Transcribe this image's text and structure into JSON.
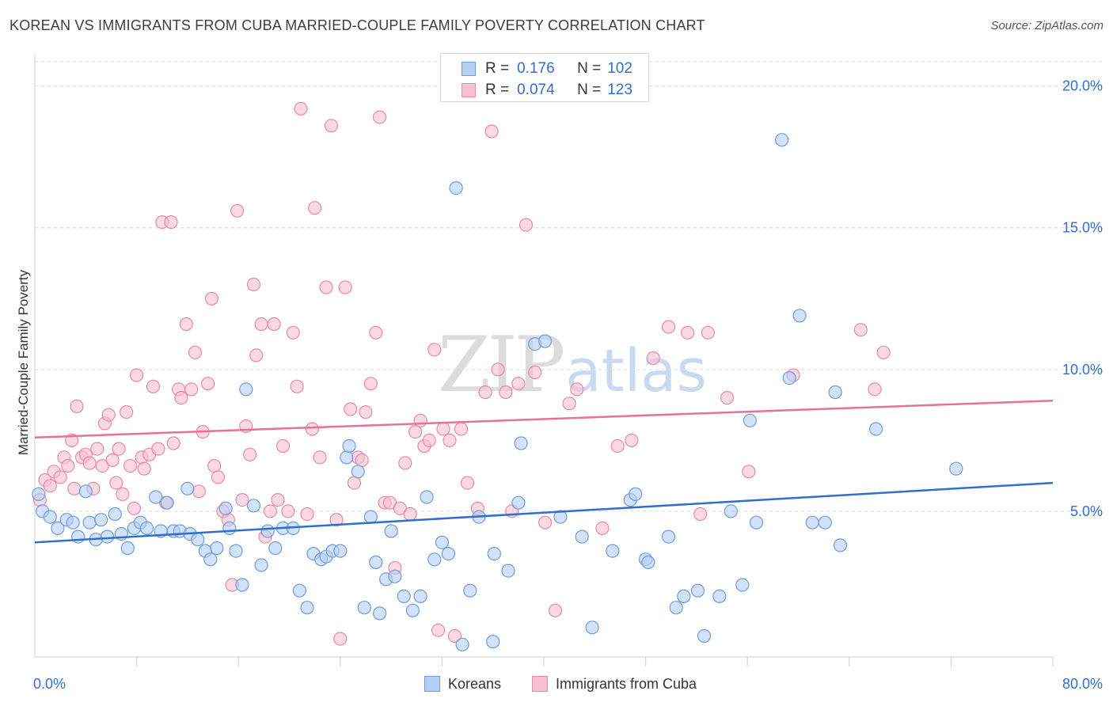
{
  "header": {
    "title": "KOREAN VS IMMIGRANTS FROM CUBA MARRIED-COUPLE FAMILY POVERTY CORRELATION CHART",
    "source": "Source: ZipAtlas.com"
  },
  "watermark": {
    "zip": "ZIP",
    "atlas": "atlas"
  },
  "colors": {
    "korean_fill": "#b6cff5",
    "korean_stroke": "#6b9de0",
    "korean_line": "#2f6fd0",
    "cuba_fill": "#f7c0d0",
    "cuba_stroke": "#e88aa6",
    "cuba_line": "#e87099",
    "value_text": "#2f6fd0",
    "grid": "#dcdcdc"
  },
  "legend": {
    "rows": [
      {
        "r_label": "R =",
        "r_value": "0.176",
        "n_label": "N =",
        "n_value": "102"
      },
      {
        "r_label": "R =",
        "r_value": "0.074",
        "n_label": "N =",
        "n_value": "123"
      }
    ]
  },
  "bottom_legend": {
    "items": [
      {
        "label": "Koreans"
      },
      {
        "label": "Immigrants from Cuba"
      }
    ]
  },
  "chart_data": {
    "type": "scatter",
    "title": "KOREAN VS IMMIGRANTS FROM CUBA MARRIED-COUPLE FAMILY POVERTY CORRELATION CHART",
    "xlabel": "",
    "ylabel": "Married-Couple Family Poverty",
    "xlim": [
      0,
      80
    ],
    "ylim": [
      0,
      20.8
    ],
    "x_tick_labels": [
      {
        "value": 0,
        "label": "0.0%"
      },
      {
        "value": 80,
        "label": "80.0%"
      }
    ],
    "y_tick_labels": [
      {
        "value": 5,
        "label": "5.0%"
      },
      {
        "value": 10,
        "label": "10.0%"
      },
      {
        "value": 15,
        "label": "15.0%"
      },
      {
        "value": 20,
        "label": "20.0%"
      }
    ],
    "x_minor_ticks": [
      8,
      16,
      24,
      32,
      40,
      48,
      56,
      64,
      72,
      80
    ],
    "grid": true,
    "legend_position": "top-center",
    "series": [
      {
        "name": "Koreans",
        "R": 0.176,
        "N": 102,
        "trend": {
          "x": [
            0,
            80
          ],
          "y": [
            3.9,
            6.0
          ]
        },
        "points": [
          [
            0.3,
            5.6
          ],
          [
            0.6,
            5.0
          ],
          [
            1.2,
            4.8
          ],
          [
            1.8,
            4.4
          ],
          [
            2.5,
            4.7
          ],
          [
            3.0,
            4.6
          ],
          [
            3.4,
            4.1
          ],
          [
            4.0,
            5.7
          ],
          [
            4.3,
            4.6
          ],
          [
            4.8,
            4.0
          ],
          [
            5.2,
            4.7
          ],
          [
            5.7,
            4.1
          ],
          [
            6.3,
            4.9
          ],
          [
            6.8,
            4.2
          ],
          [
            7.3,
            3.7
          ],
          [
            7.8,
            4.4
          ],
          [
            8.3,
            4.6
          ],
          [
            8.8,
            4.4
          ],
          [
            9.5,
            5.5
          ],
          [
            9.9,
            4.3
          ],
          [
            10.4,
            5.3
          ],
          [
            10.9,
            4.3
          ],
          [
            11.4,
            4.3
          ],
          [
            12.0,
            5.8
          ],
          [
            12.2,
            4.2
          ],
          [
            12.8,
            4.0
          ],
          [
            13.4,
            3.6
          ],
          [
            13.8,
            3.3
          ],
          [
            14.3,
            3.7
          ],
          [
            15.0,
            5.1
          ],
          [
            15.3,
            4.4
          ],
          [
            15.8,
            3.6
          ],
          [
            16.3,
            2.4
          ],
          [
            16.6,
            9.3
          ],
          [
            17.2,
            5.2
          ],
          [
            17.8,
            3.1
          ],
          [
            18.3,
            4.3
          ],
          [
            18.9,
            3.7
          ],
          [
            19.5,
            4.4
          ],
          [
            20.3,
            4.4
          ],
          [
            20.8,
            2.2
          ],
          [
            21.4,
            1.6
          ],
          [
            21.9,
            3.5
          ],
          [
            22.5,
            3.3
          ],
          [
            22.9,
            3.4
          ],
          [
            23.4,
            3.6
          ],
          [
            24.0,
            3.6
          ],
          [
            24.5,
            6.9
          ],
          [
            24.7,
            7.3
          ],
          [
            25.4,
            6.4
          ],
          [
            25.9,
            1.6
          ],
          [
            26.4,
            4.8
          ],
          [
            26.8,
            3.2
          ],
          [
            27.1,
            1.4
          ],
          [
            27.6,
            2.6
          ],
          [
            28.0,
            4.3
          ],
          [
            28.3,
            2.7
          ],
          [
            29.0,
            2.0
          ],
          [
            29.7,
            1.5
          ],
          [
            30.3,
            2.0
          ],
          [
            30.8,
            5.5
          ],
          [
            31.4,
            3.3
          ],
          [
            32.0,
            3.9
          ],
          [
            32.5,
            3.5
          ],
          [
            33.1,
            16.4
          ],
          [
            33.6,
            0.3
          ],
          [
            34.2,
            2.2
          ],
          [
            34.9,
            4.8
          ],
          [
            36.0,
            0.4
          ],
          [
            36.1,
            3.5
          ],
          [
            37.2,
            2.9
          ],
          [
            38.0,
            5.3
          ],
          [
            38.2,
            7.4
          ],
          [
            39.3,
            10.9
          ],
          [
            40.1,
            11.0
          ],
          [
            41.3,
            4.8
          ],
          [
            43.0,
            4.1
          ],
          [
            43.8,
            0.9
          ],
          [
            45.4,
            3.6
          ],
          [
            46.8,
            5.4
          ],
          [
            47.2,
            5.6
          ],
          [
            48.0,
            3.3
          ],
          [
            48.2,
            3.2
          ],
          [
            49.8,
            4.1
          ],
          [
            50.4,
            1.6
          ],
          [
            51.0,
            2.0
          ],
          [
            52.1,
            2.2
          ],
          [
            52.6,
            0.6
          ],
          [
            53.8,
            2.0
          ],
          [
            54.7,
            5.0
          ],
          [
            55.6,
            2.4
          ],
          [
            56.2,
            8.2
          ],
          [
            56.7,
            4.6
          ],
          [
            58.7,
            18.1
          ],
          [
            59.3,
            9.7
          ],
          [
            60.1,
            11.9
          ],
          [
            61.1,
            4.6
          ],
          [
            62.1,
            4.6
          ],
          [
            62.9,
            9.2
          ],
          [
            63.3,
            3.8
          ],
          [
            66.1,
            7.9
          ],
          [
            72.4,
            6.5
          ]
        ]
      },
      {
        "name": "Immigrants from Cuba",
        "R": 0.074,
        "N": 123,
        "trend": {
          "x": [
            0,
            80
          ],
          "y": [
            7.6,
            8.9
          ]
        },
        "points": [
          [
            0.4,
            5.4
          ],
          [
            0.8,
            6.1
          ],
          [
            1.2,
            5.9
          ],
          [
            1.5,
            6.4
          ],
          [
            2.0,
            6.2
          ],
          [
            2.3,
            6.9
          ],
          [
            2.6,
            6.6
          ],
          [
            2.9,
            7.5
          ],
          [
            3.1,
            5.8
          ],
          [
            3.3,
            8.7
          ],
          [
            3.7,
            6.9
          ],
          [
            4.0,
            7.0
          ],
          [
            4.3,
            6.7
          ],
          [
            4.6,
            5.8
          ],
          [
            4.9,
            7.2
          ],
          [
            5.3,
            6.6
          ],
          [
            5.5,
            8.1
          ],
          [
            5.8,
            8.4
          ],
          [
            6.1,
            6.8
          ],
          [
            6.4,
            6.0
          ],
          [
            6.6,
            7.2
          ],
          [
            6.9,
            5.6
          ],
          [
            7.2,
            8.5
          ],
          [
            7.5,
            6.6
          ],
          [
            7.8,
            5.1
          ],
          [
            8.0,
            9.8
          ],
          [
            8.4,
            6.9
          ],
          [
            8.6,
            6.5
          ],
          [
            9.0,
            7.0
          ],
          [
            9.3,
            9.4
          ],
          [
            9.7,
            7.2
          ],
          [
            10.0,
            15.2
          ],
          [
            10.3,
            5.3
          ],
          [
            10.7,
            15.2
          ],
          [
            10.9,
            7.4
          ],
          [
            11.3,
            9.3
          ],
          [
            11.5,
            9.0
          ],
          [
            11.9,
            11.6
          ],
          [
            12.3,
            9.3
          ],
          [
            12.6,
            10.6
          ],
          [
            12.9,
            5.7
          ],
          [
            13.2,
            7.8
          ],
          [
            13.6,
            9.5
          ],
          [
            13.9,
            12.5
          ],
          [
            14.1,
            6.6
          ],
          [
            14.4,
            6.2
          ],
          [
            14.8,
            5.0
          ],
          [
            15.2,
            4.7
          ],
          [
            15.5,
            2.4
          ],
          [
            15.9,
            15.6
          ],
          [
            16.3,
            5.4
          ],
          [
            16.6,
            8.0
          ],
          [
            16.9,
            7.0
          ],
          [
            17.2,
            13.0
          ],
          [
            17.4,
            10.5
          ],
          [
            17.8,
            11.6
          ],
          [
            18.1,
            4.1
          ],
          [
            18.5,
            5.0
          ],
          [
            18.8,
            11.6
          ],
          [
            19.1,
            5.4
          ],
          [
            19.5,
            7.3
          ],
          [
            19.9,
            5.0
          ],
          [
            20.3,
            11.3
          ],
          [
            20.6,
            9.4
          ],
          [
            20.9,
            19.2
          ],
          [
            21.4,
            4.9
          ],
          [
            21.8,
            7.9
          ],
          [
            22.0,
            15.7
          ],
          [
            22.4,
            6.9
          ],
          [
            22.9,
            12.9
          ],
          [
            23.3,
            18.6
          ],
          [
            23.7,
            4.7
          ],
          [
            24.0,
            0.5
          ],
          [
            24.4,
            12.9
          ],
          [
            24.8,
            8.6
          ],
          [
            25.1,
            6.0
          ],
          [
            25.4,
            6.9
          ],
          [
            25.7,
            6.8
          ],
          [
            26.0,
            8.5
          ],
          [
            26.4,
            9.5
          ],
          [
            26.8,
            11.3
          ],
          [
            27.1,
            18.9
          ],
          [
            27.5,
            5.3
          ],
          [
            27.9,
            5.3
          ],
          [
            28.3,
            3.0
          ],
          [
            28.7,
            5.1
          ],
          [
            29.1,
            6.7
          ],
          [
            29.5,
            4.9
          ],
          [
            29.9,
            7.8
          ],
          [
            30.3,
            8.2
          ],
          [
            30.6,
            7.3
          ],
          [
            31.0,
            7.5
          ],
          [
            31.4,
            10.7
          ],
          [
            31.7,
            0.8
          ],
          [
            32.1,
            7.9
          ],
          [
            32.6,
            7.5
          ],
          [
            33.0,
            0.6
          ],
          [
            33.5,
            7.9
          ],
          [
            34.0,
            6.0
          ],
          [
            34.8,
            5.1
          ],
          [
            35.4,
            9.2
          ],
          [
            35.9,
            18.4
          ],
          [
            36.4,
            10.0
          ],
          [
            37.0,
            9.2
          ],
          [
            37.5,
            5.0
          ],
          [
            38.0,
            9.5
          ],
          [
            38.6,
            15.1
          ],
          [
            39.3,
            9.9
          ],
          [
            40.1,
            4.6
          ],
          [
            40.9,
            1.5
          ],
          [
            42.0,
            8.8
          ],
          [
            42.6,
            9.3
          ],
          [
            44.6,
            4.4
          ],
          [
            45.8,
            7.3
          ],
          [
            46.9,
            7.5
          ],
          [
            48.6,
            10.4
          ],
          [
            49.8,
            11.5
          ],
          [
            51.3,
            11.3
          ],
          [
            52.3,
            4.9
          ],
          [
            52.9,
            11.3
          ],
          [
            54.4,
            9.0
          ],
          [
            56.1,
            6.4
          ],
          [
            59.6,
            9.8
          ],
          [
            64.9,
            11.4
          ],
          [
            66.0,
            9.3
          ],
          [
            66.7,
            10.6
          ]
        ]
      }
    ]
  }
}
